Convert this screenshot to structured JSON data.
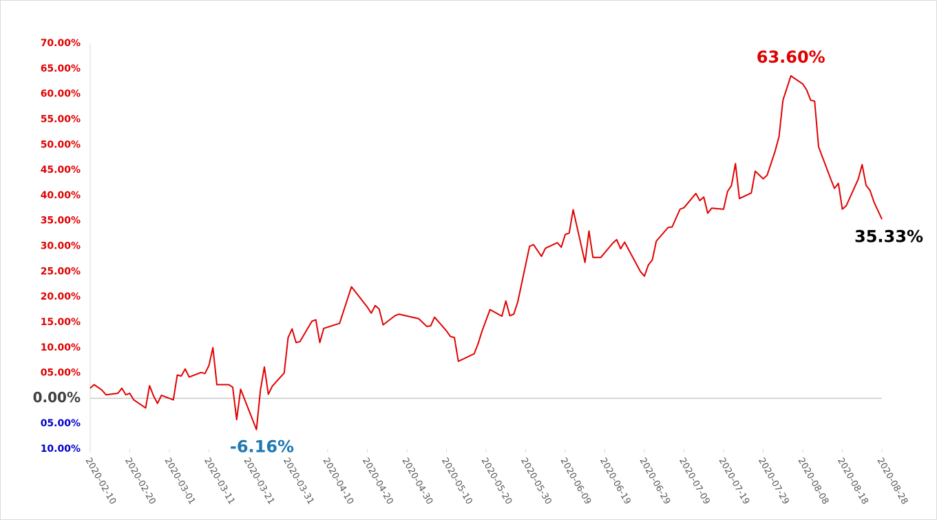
{
  "chart_data": {
    "type": "line",
    "x": [
      "2020-02-10",
      "2020-02-11",
      "2020-02-13",
      "2020-02-14",
      "2020-02-17",
      "2020-02-18",
      "2020-02-19",
      "2020-02-20",
      "2020-02-21",
      "2020-02-24",
      "2020-02-25",
      "2020-02-26",
      "2020-02-27",
      "2020-02-28",
      "2020-03-02",
      "2020-03-03",
      "2020-03-04",
      "2020-03-05",
      "2020-03-06",
      "2020-03-09",
      "2020-03-10",
      "2020-03-11",
      "2020-03-12",
      "2020-03-13",
      "2020-03-16",
      "2020-03-17",
      "2020-03-18",
      "2020-03-19",
      "2020-03-23",
      "2020-03-24",
      "2020-03-25",
      "2020-03-26",
      "2020-03-27",
      "2020-03-30",
      "2020-03-31",
      "2020-04-01",
      "2020-04-02",
      "2020-04-03",
      "2020-04-06",
      "2020-04-07",
      "2020-04-08",
      "2020-04-09",
      "2020-04-13",
      "2020-04-16",
      "2020-04-20",
      "2020-04-21",
      "2020-04-22",
      "2020-04-23",
      "2020-04-24",
      "2020-04-27",
      "2020-04-28",
      "2020-05-03",
      "2020-05-05",
      "2020-05-06",
      "2020-05-07",
      "2020-05-10",
      "2020-05-11",
      "2020-05-12",
      "2020-05-13",
      "2020-05-17",
      "2020-05-18",
      "2020-05-19",
      "2020-05-21",
      "2020-05-24",
      "2020-05-25",
      "2020-05-26",
      "2020-05-27",
      "2020-05-28",
      "2020-05-31",
      "2020-06-01",
      "2020-06-03",
      "2020-06-04",
      "2020-06-07",
      "2020-06-08",
      "2020-06-09",
      "2020-06-10",
      "2020-06-11",
      "2020-06-14",
      "2020-06-15",
      "2020-06-16",
      "2020-06-18",
      "2020-06-21",
      "2020-06-22",
      "2020-06-23",
      "2020-06-24",
      "2020-06-28",
      "2020-06-29",
      "2020-06-30",
      "2020-07-01",
      "2020-07-02",
      "2020-07-05",
      "2020-07-06",
      "2020-07-08",
      "2020-07-09",
      "2020-07-12",
      "2020-07-13",
      "2020-07-14",
      "2020-07-15",
      "2020-07-16",
      "2020-07-19",
      "2020-07-20",
      "2020-07-21",
      "2020-07-22",
      "2020-07-23",
      "2020-07-26",
      "2020-07-27",
      "2020-07-29",
      "2020-07-30",
      "2020-08-01",
      "2020-08-02",
      "2020-08-03",
      "2020-08-05",
      "2020-08-08",
      "2020-08-09",
      "2020-08-10",
      "2020-08-11",
      "2020-08-12",
      "2020-08-15",
      "2020-08-16",
      "2020-08-17",
      "2020-08-18",
      "2020-08-19",
      "2020-08-22",
      "2020-08-23",
      "2020-08-24",
      "2020-08-25",
      "2020-08-26",
      "2020-08-28"
    ],
    "series": [
      {
        "color": "#e00000",
        "values": [
          2.0,
          2.7,
          1.6,
          0.7,
          1.0,
          2.0,
          0.7,
          1.0,
          -0.3,
          -1.9,
          2.5,
          0.5,
          -1.0,
          0.6,
          -0.3,
          4.6,
          4.4,
          5.8,
          4.2,
          5.1,
          4.9,
          6.5,
          10.0,
          2.7,
          2.7,
          2.2,
          -4.2,
          1.8,
          -6.16,
          1.6,
          6.2,
          0.8,
          2.4,
          5.0,
          12.0,
          13.7,
          11.0,
          11.2,
          15.2,
          15.5,
          11.0,
          13.8,
          14.8,
          22.0,
          18.0,
          16.8,
          18.3,
          17.6,
          14.5,
          16.3,
          16.6,
          15.7,
          14.2,
          14.3,
          16.0,
          13.3,
          12.2,
          12.0,
          7.3,
          8.8,
          10.8,
          13.3,
          17.5,
          16.2,
          19.2,
          16.3,
          16.6,
          19.0,
          30.0,
          30.3,
          28.0,
          29.6,
          30.7,
          29.8,
          32.3,
          32.6,
          37.2,
          26.8,
          33.0,
          27.8,
          27.8,
          30.6,
          31.3,
          29.5,
          30.8,
          25.0,
          24.1,
          26.3,
          27.3,
          31.0,
          33.7,
          33.8,
          37.3,
          37.6,
          40.4,
          39.0,
          39.7,
          36.5,
          37.5,
          37.3,
          40.8,
          42.0,
          46.3,
          39.4,
          40.5,
          44.8,
          43.3,
          44.0,
          48.7,
          51.6,
          58.8,
          63.6,
          62.0,
          60.8,
          58.8,
          58.6,
          49.6,
          43.4,
          41.4,
          42.4,
          37.3,
          38.0,
          43.2,
          46.1,
          42.0,
          41.0,
          38.7,
          35.33
        ]
      }
    ],
    "xlim": [
      "2020-02-10",
      "2020-08-28"
    ],
    "xticks": [
      "2020-02-10",
      "2020-02-20",
      "2020-03-01",
      "2020-03-11",
      "2020-03-21",
      "2020-03-31",
      "2020-04-10",
      "2020-04-20",
      "2020-04-30",
      "2020-05-10",
      "2020-05-20",
      "2020-05-30",
      "2020-06-09",
      "2020-06-19",
      "2020-06-29",
      "2020-07-09",
      "2020-07-19",
      "2020-07-29",
      "2020-08-08",
      "2020-08-18",
      "2020-08-28"
    ],
    "ylim": [
      -10,
      70
    ],
    "yticks": [
      {
        "value": -10,
        "label": "10.00%"
      },
      {
        "value": -5,
        "label": "05.00%"
      },
      {
        "value": 0,
        "label": "0.00%"
      },
      {
        "value": 5,
        "label": "05.00%"
      },
      {
        "value": 10,
        "label": "10.00%"
      },
      {
        "value": 15,
        "label": "15.00%"
      },
      {
        "value": 20,
        "label": "20.00%"
      },
      {
        "value": 25,
        "label": "25.00%"
      },
      {
        "value": 30,
        "label": "30.00%"
      },
      {
        "value": 35,
        "label": "35.00%"
      },
      {
        "value": 40,
        "label": "40.00%"
      },
      {
        "value": 45,
        "label": "45.00%"
      },
      {
        "value": 50,
        "label": "50.00%"
      },
      {
        "value": 55,
        "label": "55.00%"
      },
      {
        "value": 60,
        "label": "60.00%"
      },
      {
        "value": 65,
        "label": "65.00%"
      },
      {
        "value": 70,
        "label": "70.00%"
      }
    ],
    "ytick_label_colors": {
      "positive": "#e00000",
      "zero": "#404040",
      "negative": "#0000cc"
    },
    "annotations": [
      {
        "text": "63.60%",
        "x": "2020-08-05",
        "y": 63.6,
        "color": "#e00000"
      },
      {
        "text": "-6.16%",
        "x": "2020-03-23",
        "y": -6.16,
        "color": "#1f78b4"
      },
      {
        "text": "35.33%",
        "x": "2020-08-28",
        "y": 35.33,
        "color": "#000000"
      }
    ]
  }
}
